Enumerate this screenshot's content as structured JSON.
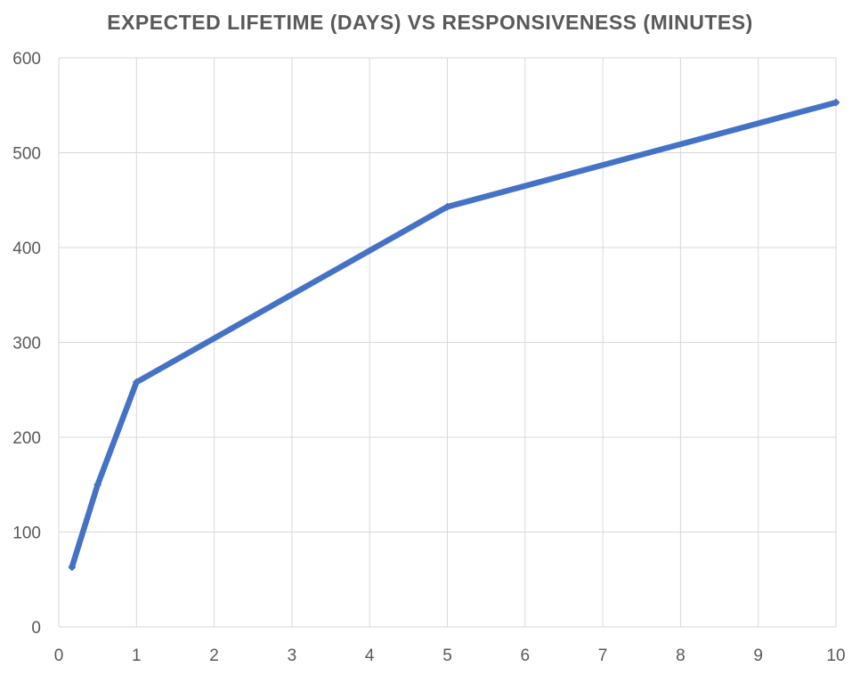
{
  "chart_data": {
    "type": "line",
    "title": "EXPECTED LIFETIME (DAYS) VS RESPONSIVENESS (MINUTES)",
    "xlabel": "",
    "ylabel": "",
    "xlim": [
      0,
      10
    ],
    "ylim": [
      0,
      600
    ],
    "x_ticks": [
      "0",
      "1",
      "2",
      "3",
      "4",
      "5",
      "6",
      "7",
      "8",
      "9",
      "10"
    ],
    "y_ticks": [
      "0",
      "100",
      "200",
      "300",
      "400",
      "500",
      "600"
    ],
    "grid": true,
    "legend": "none",
    "series": [
      {
        "color": "#4472C4",
        "points": [
          {
            "x": 0.17,
            "y": 63
          },
          {
            "x": 0.5,
            "y": 150
          },
          {
            "x": 1,
            "y": 258
          },
          {
            "x": 5,
            "y": 443
          },
          {
            "x": 10,
            "y": 553
          }
        ]
      }
    ]
  }
}
